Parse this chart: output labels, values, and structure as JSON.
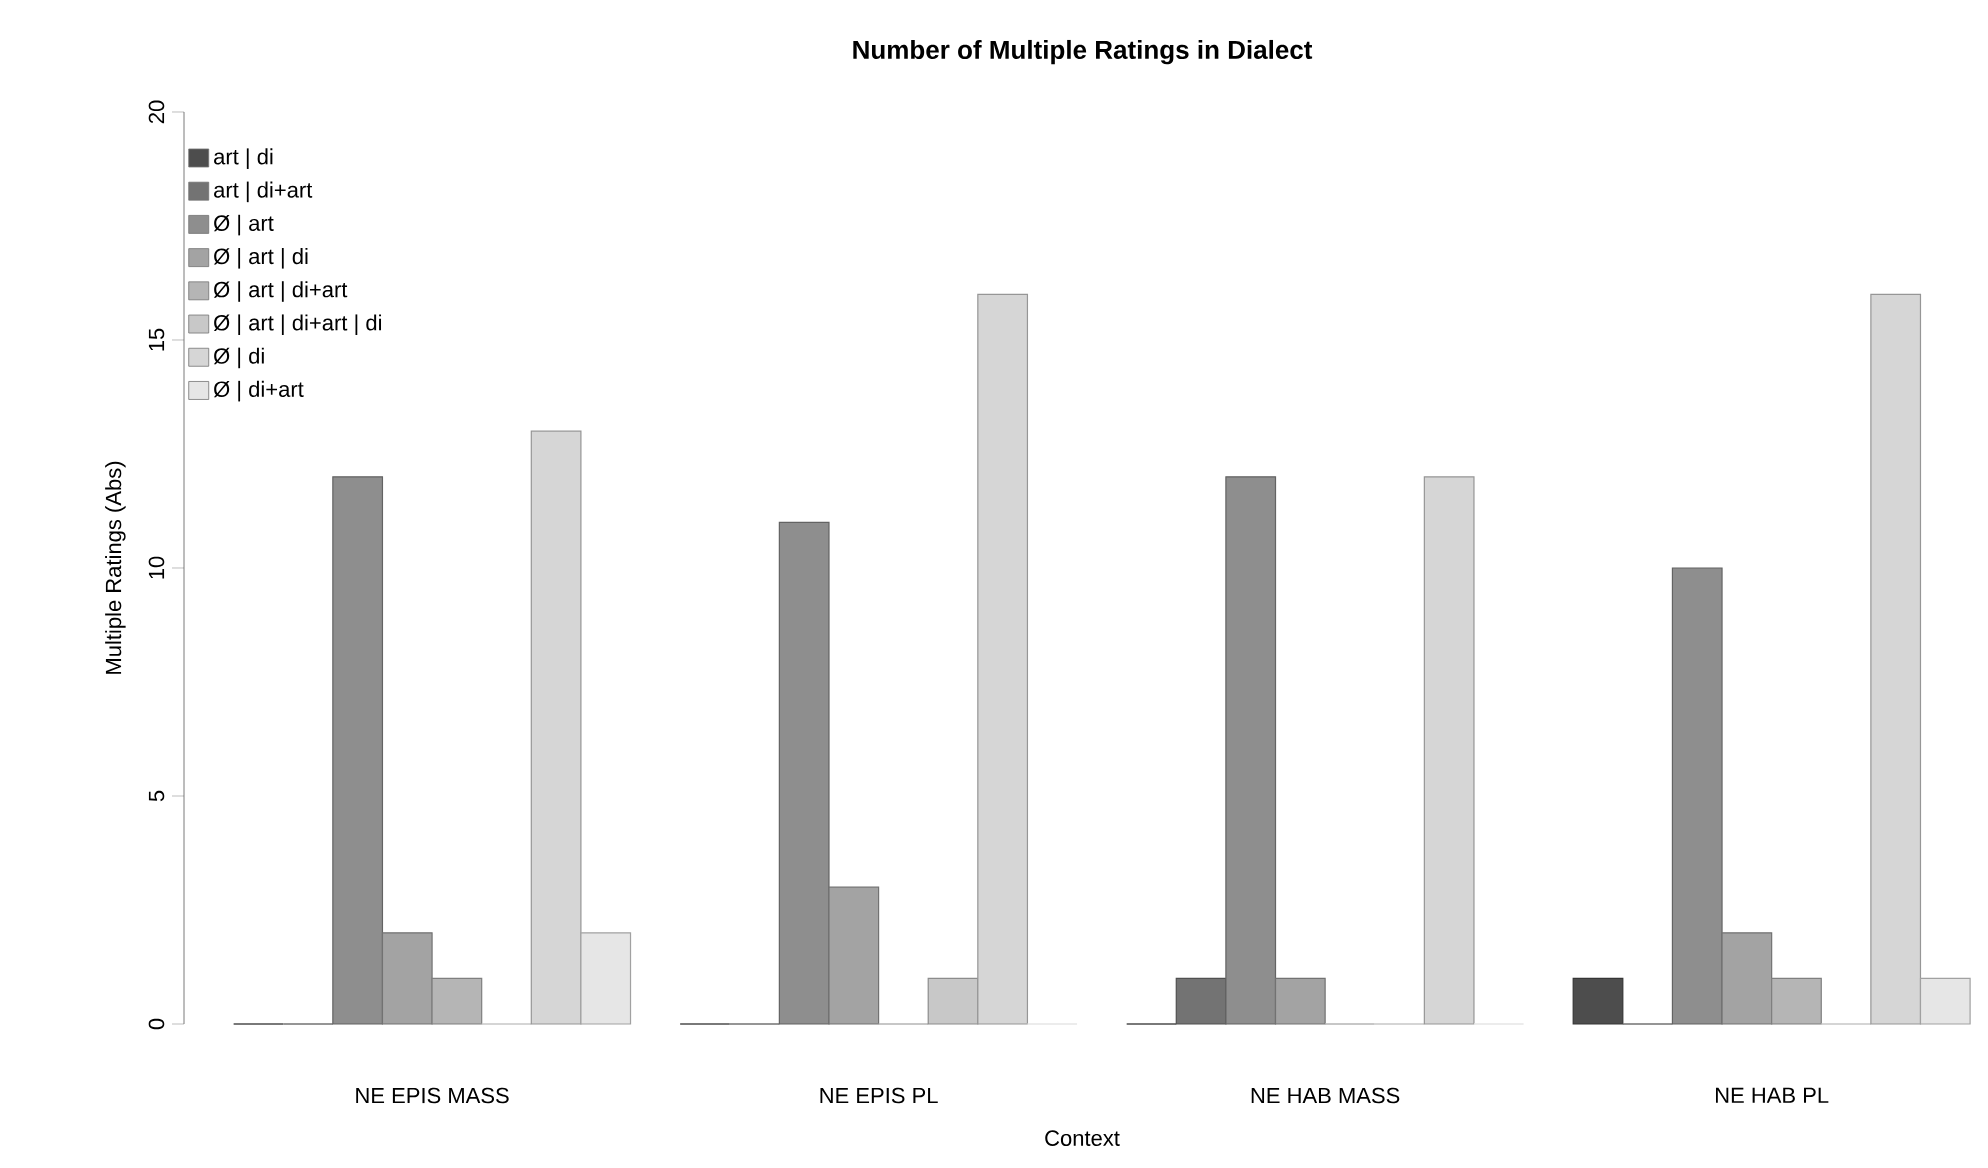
{
  "chart_data": {
    "type": "bar",
    "title": "Number of Multiple Ratings in Dialect",
    "xlabel": "Context",
    "ylabel": "Multiple Ratings (Abs)",
    "categories": [
      "NE EPIS MASS",
      "NE EPIS PL",
      "NE HAB MASS",
      "NE HAB PL"
    ],
    "ylim": [
      0,
      20
    ],
    "yticks": [
      0,
      5,
      10,
      15,
      20
    ],
    "legend": "top left",
    "series": [
      {
        "name": "art | di",
        "color": "#4d4d4d",
        "values": [
          0,
          0,
          0,
          1
        ]
      },
      {
        "name": "art | di+art",
        "color": "#737373",
        "values": [
          0,
          0,
          1,
          0
        ]
      },
      {
        "name": "Ø | art",
        "color": "#8e8e8e",
        "values": [
          12,
          11,
          12,
          10
        ]
      },
      {
        "name": "Ø | art | di",
        "color": "#a3a3a3",
        "values": [
          2,
          3,
          1,
          2
        ]
      },
      {
        "name": "Ø | art | di+art",
        "color": "#b5b5b5",
        "values": [
          1,
          0,
          0,
          1
        ]
      },
      {
        "name": "Ø | art | di+art | di",
        "color": "#c8c8c8",
        "values": [
          0,
          1,
          0,
          0
        ]
      },
      {
        "name": "Ø | di",
        "color": "#d6d6d6",
        "values": [
          13,
          16,
          12,
          16
        ]
      },
      {
        "name": "Ø | di+art",
        "color": "#e6e6e6",
        "values": [
          2,
          0,
          0,
          1
        ]
      }
    ]
  }
}
